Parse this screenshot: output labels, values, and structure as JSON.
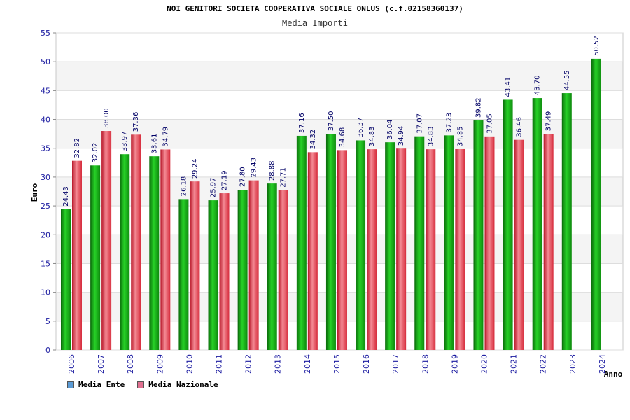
{
  "chart_data": {
    "type": "bar",
    "title": "NOI GENITORI SOCIETA COOPERATIVA SOCIALE ONLUS (c.f.02158360137)",
    "subtitle": "Media Importi",
    "ylabel": "Euro",
    "xlabel": "Anno",
    "ylim": [
      0,
      55
    ],
    "yticks": [
      "0",
      "5",
      "10",
      "15",
      "20",
      "25",
      "30",
      "35",
      "40",
      "45",
      "50",
      "55"
    ],
    "grid": true,
    "legend_position": "bottom-left",
    "categories": [
      "2006",
      "2007",
      "2008",
      "2009",
      "2010",
      "2011",
      "2012",
      "2013",
      "2014",
      "2015",
      "2016",
      "2017",
      "2018",
      "2019",
      "2020",
      "2021",
      "2022",
      "2023",
      "2024"
    ],
    "series": [
      {
        "name": "Media Ente",
        "swatch_color": "#5b9bd5",
        "bar_color": "#1fb81f",
        "values": [
          24.43,
          32.02,
          33.97,
          33.61,
          26.18,
          25.97,
          27.8,
          28.88,
          37.16,
          37.5,
          36.37,
          36.04,
          37.07,
          37.23,
          39.82,
          43.41,
          43.7,
          44.55,
          50.52
        ],
        "labels": [
          "24.43",
          "32.02",
          "33.97",
          "33.61",
          "26.18",
          "25.97",
          "27.80",
          "28.88",
          "37.16",
          "37.50",
          "36.37",
          "36.04",
          "37.07",
          "37.23",
          "39.82",
          "43.41",
          "43.70",
          "44.55",
          "50.52"
        ]
      },
      {
        "name": "Media Nazionale",
        "swatch_color": "#e07090",
        "bar_color": "#e8414f",
        "values": [
          32.82,
          38.0,
          37.36,
          34.79,
          29.24,
          27.19,
          29.43,
          27.71,
          34.32,
          34.68,
          34.83,
          34.94,
          34.83,
          34.85,
          37.05,
          36.46,
          37.49,
          null,
          null
        ],
        "labels": [
          "32.82",
          "38.00",
          "37.36",
          "34.79",
          "29.24",
          "27.19",
          "29.43",
          "27.71",
          "34.32",
          "34.68",
          "34.83",
          "34.94",
          "34.83",
          "34.85",
          "37.05",
          "36.46",
          "37.49",
          null,
          null
        ]
      }
    ]
  }
}
